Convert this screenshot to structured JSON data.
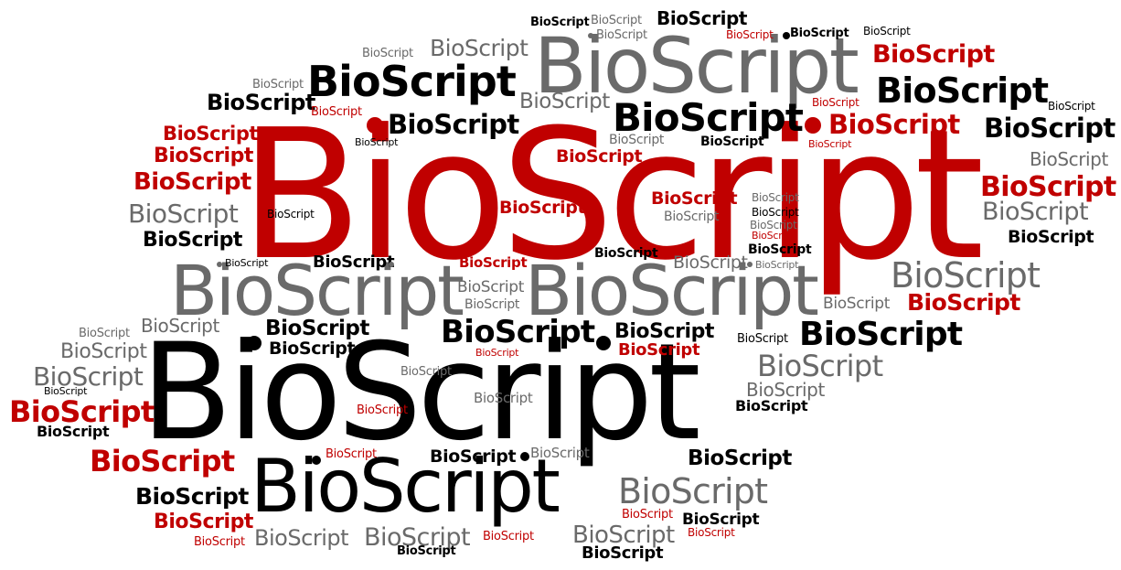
{
  "cloud": {
    "word": "BioScript",
    "colors": {
      "red": "#c00000",
      "gray": "#6a6a6a",
      "black": "#000000",
      "lightgray": "#8f8f8f"
    }
  }
}
